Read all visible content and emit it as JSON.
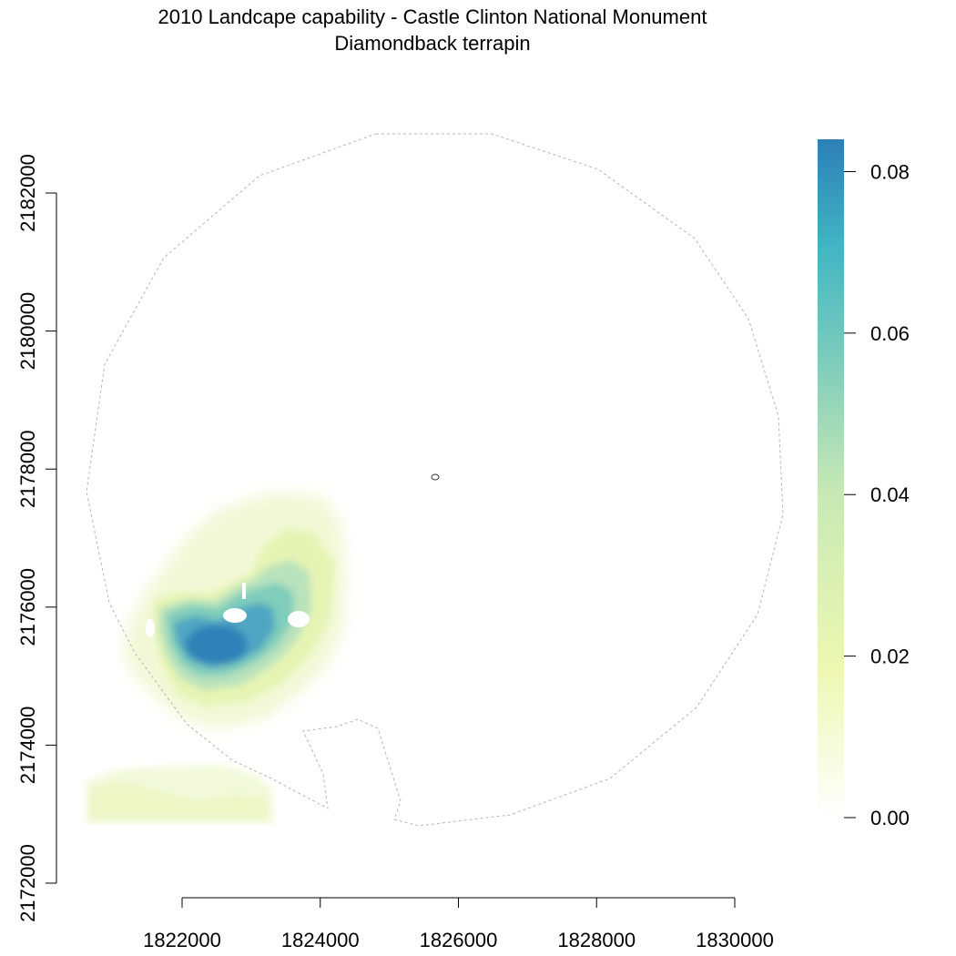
{
  "title": "2010 Landcape capability - Castle Clinton National Monument",
  "subtitle": "Diamondback terrapin",
  "chart_data": {
    "type": "heatmap",
    "title": "2010 Landcape capability - Castle Clinton National Monument",
    "subtitle": "Diamondback terrapin",
    "xlabel": "",
    "ylabel": "",
    "x_ticks": [
      1822000,
      1824000,
      1826000,
      1828000,
      1830000
    ],
    "y_ticks": [
      2172000,
      2174000,
      2176000,
      2178000,
      2180000,
      2182000
    ],
    "xlim": [
      1822000,
      1830000
    ],
    "ylim": [
      2172000,
      2182000
    ],
    "colorbar": {
      "min": 0.0,
      "max": 0.084,
      "ticks": [
        "0.00",
        "0.02",
        "0.04",
        "0.06",
        "0.08"
      ],
      "tick_values": [
        0.0,
        0.02,
        0.04,
        0.06,
        0.08
      ],
      "colors": [
        "#ffffff",
        "#edf8b1",
        "#c7e9b4",
        "#7fcdbb",
        "#41b6c4",
        "#2c7fb8"
      ]
    },
    "hotspot": {
      "x": 1822600,
      "y": 2175500,
      "value": 0.08
    },
    "park_location": {
      "x": 1825650,
      "y": 2177850
    },
    "boundary": "dashed grey circle, ~5 km buffer around monument",
    "grid": false,
    "legend": "right"
  }
}
